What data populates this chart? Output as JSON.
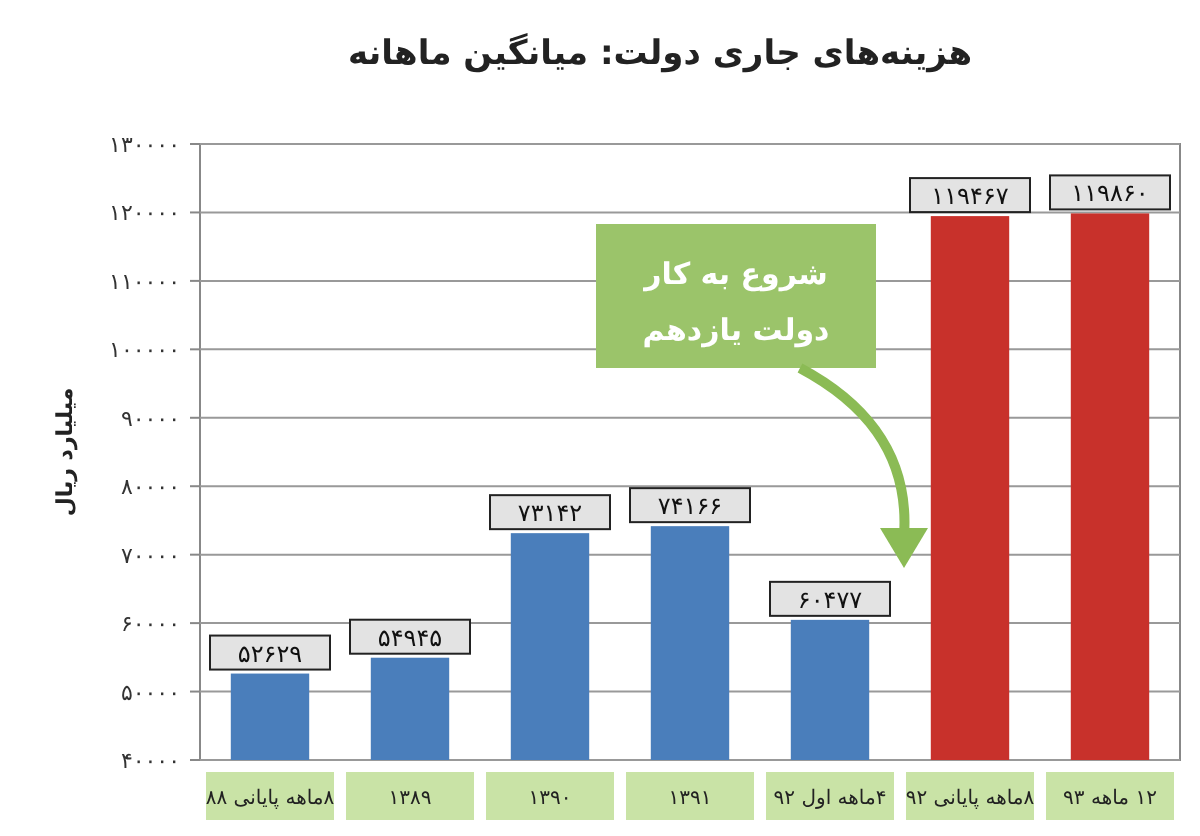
{
  "chart_data": {
    "type": "bar",
    "title": "هزینه‌های جاری دولت: میانگین ماهانه",
    "ylabel": "میلیارد ریال",
    "categories": [
      "۸ماهه پایانی ۸۸",
      "۱۳۸۹",
      "۱۳۹۰",
      "۱۳۹۱",
      "۴ماهه اول ۹۲",
      "۸ماهه پایانی ۹۲",
      "۱۲ ماهه ۹۳"
    ],
    "values": [
      52629,
      54945,
      73142,
      74166,
      60477,
      119467,
      119860
    ],
    "colors": [
      "#4a7ebb",
      "#4a7ebb",
      "#4a7ebb",
      "#4a7ebb",
      "#4a7ebb",
      "#c8312b",
      "#c8312b"
    ],
    "value_labels": [
      "۵۲۶۲۹",
      "۵۴۹۴۵",
      "۷۳۱۴۲",
      "۷۴۱۶۶",
      "۶۰۴۷۷",
      "۱۱۹۴۶۷",
      "۱۱۹۸۶۰"
    ],
    "ylim": [
      40000,
      130000
    ],
    "yticks": [
      {
        "value": 40000,
        "label": "۴۰۰۰۰"
      },
      {
        "value": 50000,
        "label": "۵۰۰۰۰"
      },
      {
        "value": 60000,
        "label": "۶۰۰۰۰"
      },
      {
        "value": 70000,
        "label": "۷۰۰۰۰"
      },
      {
        "value": 80000,
        "label": "۸۰۰۰۰"
      },
      {
        "value": 90000,
        "label": "۹۰۰۰۰"
      },
      {
        "value": 100000,
        "label": "۱۰۰۰۰۰"
      },
      {
        "value": 110000,
        "label": "۱۱۰۰۰۰"
      },
      {
        "value": 120000,
        "label": "۱۲۰۰۰۰"
      },
      {
        "value": 130000,
        "label": "۱۳۰۰۰۰"
      }
    ],
    "grid": "y",
    "annotations": [
      "شروع به کار\nدولت یازدهم"
    ]
  }
}
